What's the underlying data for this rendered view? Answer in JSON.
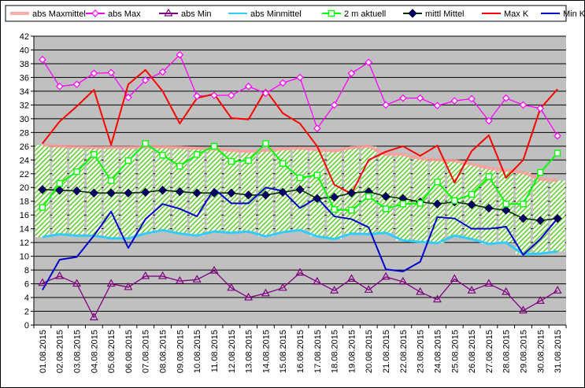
{
  "chart_data": {
    "type": "line",
    "x": [
      "01.08.2015",
      "02.08.2015",
      "03.08.2015",
      "04.08.2015",
      "05.08.2015",
      "06.08.2015",
      "07.08.2015",
      "08.08.2015",
      "09.08.2015",
      "10.08.2015",
      "11.08.2015",
      "12.08.2015",
      "13.08.2015",
      "14.08.2015",
      "15.08.2015",
      "16.08.2015",
      "17.08.2015",
      "18.08.2015",
      "19.08.2015",
      "20.08.2015",
      "21.08.2015",
      "22.08.2015",
      "23.08.2015",
      "24.08.2015",
      "25.08.2015",
      "26.08.2015",
      "27.08.2015",
      "28.08.2015",
      "29.08.2015",
      "30.08.2015",
      "31.08.2015"
    ],
    "ylim": [
      0,
      42
    ],
    "yticks": [
      0,
      2,
      4,
      6,
      8,
      10,
      12,
      14,
      16,
      18,
      20,
      22,
      24,
      26,
      28,
      30,
      32,
      34,
      36,
      38,
      40,
      42
    ],
    "grid": "horizontal",
    "legend_position": "top",
    "band": {
      "upper": "abs Maxmittel",
      "lower": "abs Minmittel",
      "fill": "green hatched"
    },
    "series": [
      {
        "name": "abs Maxmittel",
        "color": "#ff9999",
        "marker": "none",
        "values": [
          26.2,
          26.0,
          25.9,
          25.8,
          25.8,
          25.8,
          25.9,
          25.9,
          25.8,
          25.7,
          25.6,
          25.4,
          25.2,
          25.4,
          25.6,
          25.7,
          25.5,
          25.3,
          25.8,
          26.0,
          24.8,
          24.8,
          24.2,
          24.0,
          23.9,
          23.4,
          22.8,
          22.5,
          22.2,
          21.2,
          21.0
        ]
      },
      {
        "name": "abs Max",
        "color": "#ff00ff",
        "marker": "diamond-open",
        "values": [
          38.6,
          34.7,
          35.0,
          36.6,
          36.7,
          33.1,
          35.6,
          36.8,
          39.3,
          33.3,
          33.4,
          33.4,
          34.7,
          33.7,
          35.2,
          36.0,
          28.6,
          32.0,
          36.6,
          38.2,
          32.0,
          33.0,
          33.0,
          31.9,
          32.6,
          32.9,
          29.7,
          33.0,
          32.0,
          31.5,
          27.5
        ]
      },
      {
        "name": "abs Min",
        "color": "#800080",
        "marker": "triangle-open",
        "values": [
          6.1,
          7.1,
          6.0,
          1.1,
          6.0,
          5.5,
          7.1,
          7.1,
          6.4,
          6.6,
          7.9,
          5.4,
          4.0,
          4.6,
          5.4,
          7.6,
          6.3,
          5.0,
          6.7,
          5.1,
          7.0,
          6.3,
          4.8,
          3.7,
          6.7,
          5.0,
          6.0,
          4.8,
          2.1,
          3.5,
          5.0
        ]
      },
      {
        "name": "abs Minmittel",
        "color": "#33ccff",
        "marker": "none",
        "values": [
          12.8,
          13.2,
          13.0,
          13.0,
          12.6,
          12.6,
          13.3,
          13.8,
          13.3,
          13.0,
          13.6,
          13.4,
          13.6,
          12.9,
          13.5,
          13.8,
          12.9,
          12.5,
          13.3,
          13.2,
          13.4,
          12.3,
          12.1,
          11.9,
          13.0,
          12.5,
          11.8,
          12.0,
          10.3,
          10.4,
          10.7
        ]
      },
      {
        "name": "2 m aktuell",
        "color": "#00ff00",
        "marker": "square-open",
        "values": [
          17.1,
          20.6,
          22.3,
          24.8,
          21.0,
          23.9,
          26.4,
          24.7,
          23.1,
          24.8,
          26.0,
          23.8,
          23.9,
          26.4,
          23.5,
          21.4,
          21.8,
          16.8,
          16.7,
          18.7,
          16.9,
          17.6,
          17.7,
          20.8,
          18.1,
          19.0,
          21.6,
          17.6,
          17.6,
          22.2,
          25.0
        ]
      },
      {
        "name": "mittl Mittel",
        "color": "#003300",
        "marker": "diamond-filled",
        "values": [
          19.7,
          19.6,
          19.5,
          19.2,
          19.2,
          19.2,
          19.3,
          19.6,
          19.4,
          19.2,
          19.2,
          19.2,
          18.9,
          18.9,
          19.3,
          19.7,
          18.4,
          18.6,
          19.2,
          19.4,
          18.7,
          18.4,
          17.9,
          17.6,
          17.9,
          17.5,
          17.0,
          16.7,
          15.5,
          15.2,
          15.5
        ]
      },
      {
        "name": "Max K",
        "color": "#ff0000",
        "marker": "none",
        "values": [
          26.4,
          29.6,
          31.8,
          34.2,
          26.2,
          35.0,
          37.1,
          34.0,
          29.3,
          33.0,
          33.6,
          30.1,
          29.9,
          34.2,
          30.8,
          29.3,
          26.0,
          20.4,
          19.1,
          24.0,
          25.2,
          26.0,
          24.6,
          26.1,
          20.7,
          25.3,
          27.6,
          21.4,
          24.0,
          31.5,
          34.3
        ]
      },
      {
        "name": "Min K",
        "color": "#0000cc",
        "marker": "none",
        "values": [
          5.1,
          9.5,
          9.9,
          13.0,
          16.5,
          11.2,
          15.4,
          17.6,
          16.9,
          15.8,
          19.8,
          17.7,
          17.7,
          20.0,
          19.5,
          17.0,
          18.5,
          15.8,
          15.4,
          14.2,
          8.1,
          7.8,
          9.2,
          15.7,
          15.5,
          14.0,
          14.0,
          14.3,
          10.2,
          12.5,
          15.5
        ]
      }
    ]
  }
}
